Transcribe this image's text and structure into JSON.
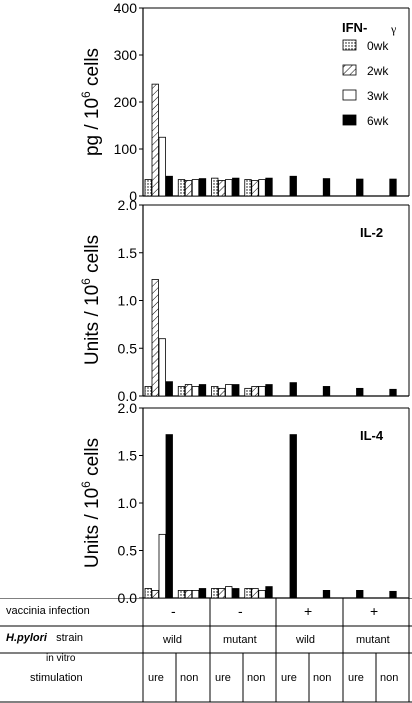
{
  "chart_data": [
    {
      "type": "bar",
      "title": "IFN-γ",
      "title_main": "IFN-",
      "title_greek": "γ",
      "ylabel_main": "pg / 10",
      "ylabel_sup": "6",
      "ylabel_tail": " cells",
      "ylim": [
        0,
        400
      ],
      "yticks": [
        "0",
        "100",
        "200",
        "300",
        "400"
      ],
      "yticks_values": [
        0,
        100,
        200,
        300,
        400
      ],
      "legend": {
        "placement": "top-right",
        "entries": [
          "0wk",
          "2wk",
          "3wk",
          "6wk"
        ]
      },
      "groups": [
        {
          "label": "wild ure -",
          "values": [
            35,
            238,
            125,
            42
          ]
        },
        {
          "label": "wild non -",
          "values": [
            35,
            33,
            35,
            37
          ]
        },
        {
          "label": "mutant ure -",
          "values": [
            38,
            33,
            35,
            38
          ]
        },
        {
          "label": "mutant non -",
          "values": [
            35,
            33,
            35,
            38
          ]
        },
        {
          "label": "wild ure +",
          "values": [
            null,
            null,
            null,
            42
          ]
        },
        {
          "label": "wild non +",
          "values": [
            null,
            null,
            null,
            37
          ]
        },
        {
          "label": "mutant ure +",
          "values": [
            null,
            null,
            null,
            36
          ]
        },
        {
          "label": "mutant non +",
          "values": [
            null,
            null,
            null,
            36
          ]
        }
      ]
    },
    {
      "type": "bar",
      "title": "IL-2",
      "ylabel_main": "Units / 10",
      "ylabel_sup": "6",
      "ylabel_tail": " cells",
      "ylim": [
        0,
        2.0
      ],
      "yticks": [
        "0.0",
        "0.5",
        "1.0",
        "1.5",
        "2.0"
      ],
      "yticks_values": [
        0,
        0.5,
        1.0,
        1.5,
        2.0
      ],
      "groups": [
        {
          "label": "wild ure -",
          "values": [
            0.1,
            1.22,
            0.6,
            0.15
          ]
        },
        {
          "label": "wild non -",
          "values": [
            0.1,
            0.12,
            0.1,
            0.12
          ]
        },
        {
          "label": "mutant ure -",
          "values": [
            0.1,
            0.08,
            0.12,
            0.12
          ]
        },
        {
          "label": "mutant non -",
          "values": [
            0.08,
            0.1,
            0.1,
            0.12
          ]
        },
        {
          "label": "wild ure +",
          "values": [
            null,
            null,
            null,
            0.14
          ]
        },
        {
          "label": "wild non +",
          "values": [
            null,
            null,
            null,
            0.1
          ]
        },
        {
          "label": "mutant ure +",
          "values": [
            null,
            null,
            null,
            0.08
          ]
        },
        {
          "label": "mutant non +",
          "values": [
            null,
            null,
            null,
            0.07
          ]
        }
      ]
    },
    {
      "type": "bar",
      "title": "IL-4",
      "ylabel_main": "Units / 10",
      "ylabel_sup": "6",
      "ylabel_tail": " cells",
      "ylim": [
        0,
        2.0
      ],
      "yticks": [
        "0.0",
        "0.5",
        "1.0",
        "1.5",
        "2.0"
      ],
      "yticks_values": [
        0,
        0.5,
        1.0,
        1.5,
        2.0
      ],
      "groups": [
        {
          "label": "wild ure -",
          "values": [
            0.1,
            0.08,
            0.67,
            1.72
          ]
        },
        {
          "label": "wild non -",
          "values": [
            0.08,
            0.08,
            0.08,
            0.1
          ]
        },
        {
          "label": "mutant ure -",
          "values": [
            0.1,
            0.1,
            0.12,
            0.1
          ]
        },
        {
          "label": "mutant non -",
          "values": [
            0.1,
            0.1,
            0.08,
            0.12
          ]
        },
        {
          "label": "wild ure +",
          "values": [
            null,
            null,
            null,
            1.72
          ]
        },
        {
          "label": "wild non +",
          "values": [
            null,
            null,
            null,
            0.08
          ]
        },
        {
          "label": "mutant ure +",
          "values": [
            null,
            null,
            null,
            0.08
          ]
        },
        {
          "label": "mutant non +",
          "values": [
            null,
            null,
            null,
            0.07
          ]
        }
      ]
    }
  ],
  "table": {
    "row1_label": "vaccinia infection",
    "row2_label_italic": "H.pylori",
    "row2_label_tail": "   strain",
    "row3_label_top": "in vitro",
    "row3_label_bottom": "stimulation",
    "vaccinia": [
      "-",
      "-",
      "+",
      "+"
    ],
    "strain": [
      "wild",
      "mutant",
      "wild",
      "mutant"
    ],
    "stimulation": [
      "ure",
      "non",
      "ure",
      "non",
      "ure",
      "non",
      "ure",
      "non"
    ]
  },
  "colors": {
    "axis": "#000000",
    "fill_solid": "#000000",
    "fill_open": "#ffffff"
  }
}
